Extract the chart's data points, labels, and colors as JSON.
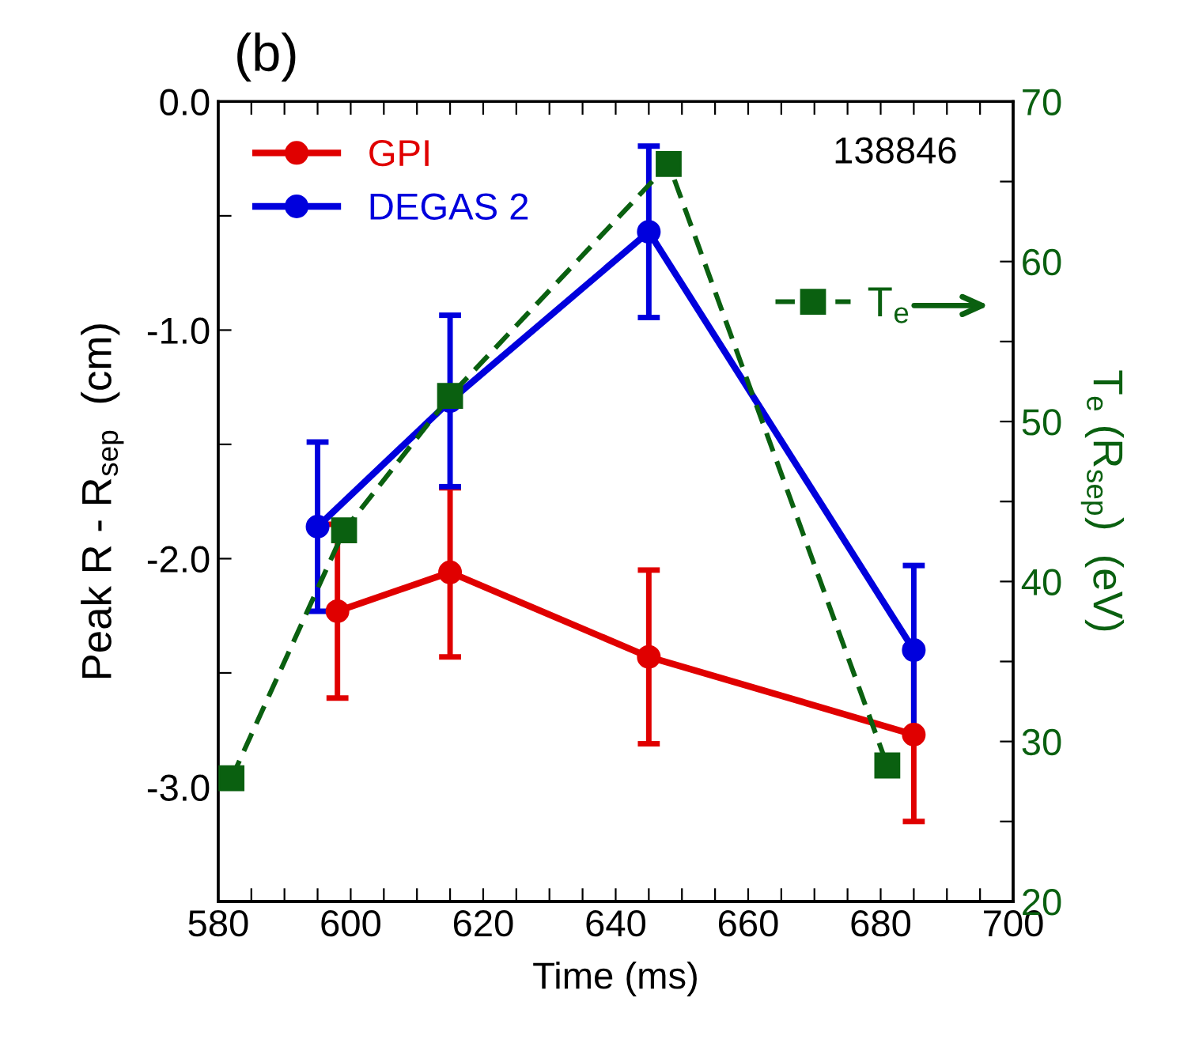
{
  "chart_data": {
    "type": "line",
    "title": "(b)",
    "xlabel": "Time (ms)",
    "ylabel": "Peak R - R$_{sep}$  (cm)",
    "y2label": "T$_{e}$ (R$_{sep}$)  (eV)",
    "annotations": [
      "138846"
    ],
    "xlim": [
      580,
      700
    ],
    "xticks": [
      580,
      {
        "value": 585,
        "label": null
      },
      {
        "value": 590,
        "label": null
      },
      {
        "value": 595,
        "label": null
      },
      600,
      {
        "value": 605,
        "label": null
      },
      {
        "value": 610,
        "label": null
      },
      {
        "value": 615,
        "label": null
      },
      620,
      {
        "value": 625,
        "label": null
      },
      {
        "value": 630,
        "label": null
      },
      {
        "value": 635,
        "label": null
      },
      640,
      {
        "value": 645,
        "label": null
      },
      {
        "value": 650,
        "label": null
      },
      {
        "value": 655,
        "label": null
      },
      660,
      {
        "value": 665,
        "label": null
      },
      {
        "value": 670,
        "label": null
      },
      {
        "value": 675,
        "label": null
      },
      680,
      {
        "value": 685,
        "label": null
      },
      {
        "value": 690,
        "label": null
      },
      {
        "value": 695,
        "label": null
      },
      700
    ],
    "ylim": [
      -3.5,
      0
    ],
    "yticks": [
      {
        "value": -3.5,
        "label": null
      },
      {
        "value": -3,
        "label": "-3.0"
      },
      {
        "value": -2.5,
        "label": null
      },
      {
        "value": -2,
        "label": "-2.0"
      },
      {
        "value": -1.5,
        "label": null
      },
      {
        "value": -1,
        "label": "-1.0"
      },
      {
        "value": -0.5,
        "label": null
      },
      {
        "value": 0,
        "label": "0.0"
      }
    ],
    "y2lim": [
      20,
      70
    ],
    "y2ticks": [
      20,
      {
        "value": 25,
        "label": null
      },
      30,
      {
        "value": 35,
        "label": null
      },
      40,
      {
        "value": 45,
        "label": null
      },
      50,
      {
        "value": 55,
        "label": null
      },
      60,
      {
        "value": 65,
        "label": null
      },
      70
    ],
    "legend": "top left",
    "grid": false,
    "series": [
      {
        "name": "GPI",
        "color": "#e00000",
        "marker": "circle",
        "line_style": "solid",
        "x": [
          598,
          615,
          645,
          685
        ],
        "values": [
          -2.23,
          -2.06,
          -2.43,
          -2.77
        ],
        "errors": [
          0.38,
          0.37,
          0.38,
          0.38
        ]
      },
      {
        "name": "DEGAS 2",
        "color": "#0000dd",
        "marker": "circle",
        "line_style": "solid",
        "x": [
          595,
          615,
          645,
          685
        ],
        "values": [
          -1.86,
          -1.31,
          -0.57,
          -2.4
        ],
        "errors": [
          0.37,
          0.375,
          0.375,
          0.37
        ]
      },
      {
        "name": "T$_{e}$",
        "color": "#0a6010",
        "marker": "square",
        "line_style": "dashed",
        "axis": "y2",
        "x": [
          582,
          599,
          615,
          648,
          681
        ],
        "values": [
          27.7,
          43.2,
          51.6,
          66.1,
          28.5
        ]
      }
    ]
  }
}
